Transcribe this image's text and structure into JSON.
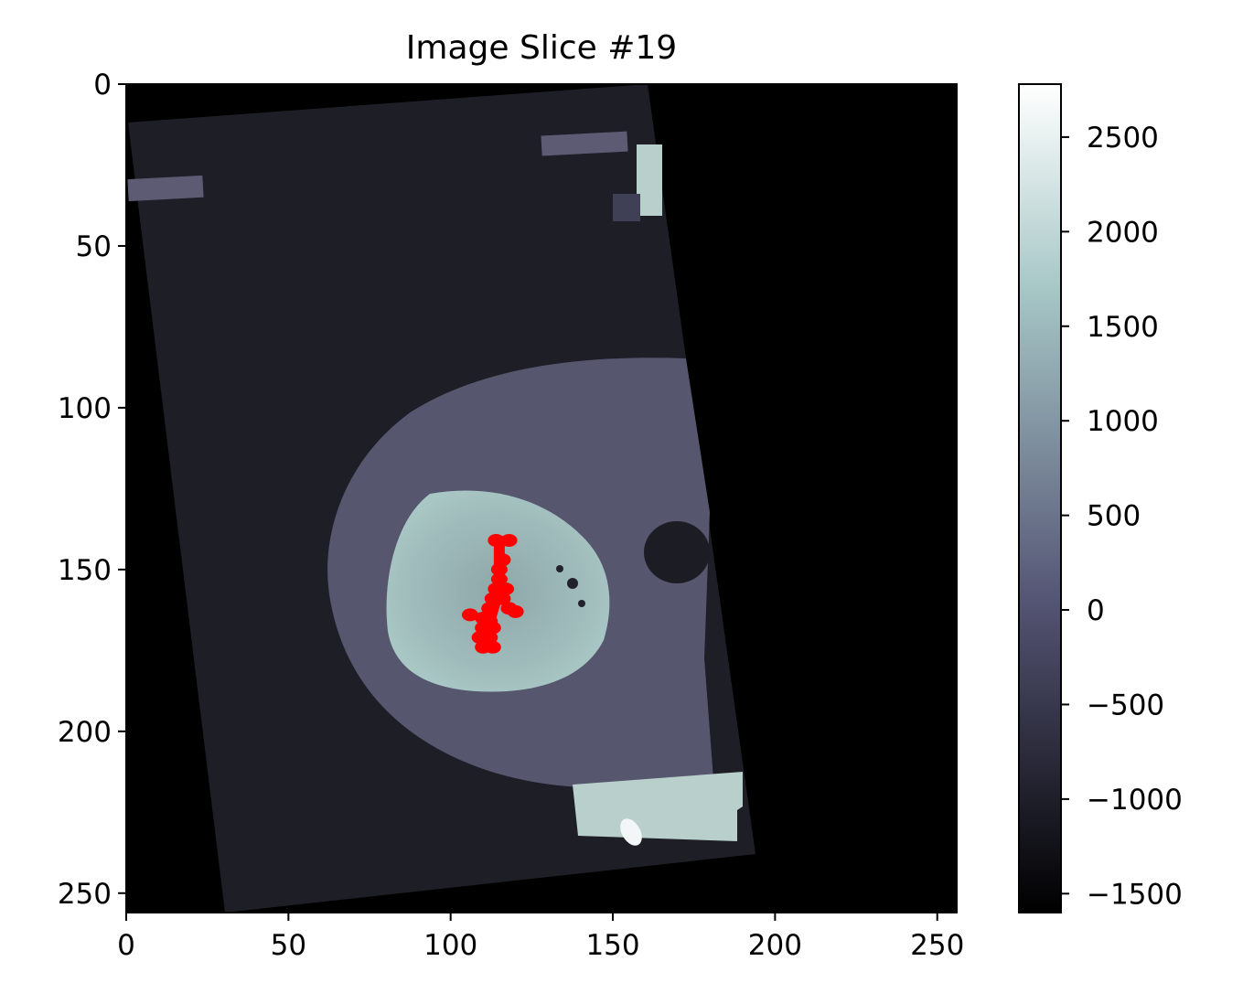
{
  "chart_data": {
    "type": "heatmap",
    "title": "Image Slice #19",
    "colormap": "bone",
    "image_size": [
      256,
      256
    ],
    "x_axis": {
      "range": [
        0,
        256
      ],
      "ticks": [
        0,
        50,
        100,
        150,
        200,
        250
      ]
    },
    "y_axis": {
      "range": [
        256,
        0
      ],
      "inverted": true,
      "ticks": [
        0,
        50,
        100,
        150,
        200,
        250
      ]
    },
    "colorbar": {
      "range": [
        -1600,
        2780
      ],
      "ticks": [
        -1500,
        -1000,
        -500,
        0,
        500,
        1000,
        1500,
        2000,
        2500
      ],
      "tick_labels": [
        "−1500",
        "−1000",
        "−500",
        "0",
        "500",
        "1000",
        "1500",
        "2000",
        "2500"
      ]
    },
    "overlay": {
      "color": "#ff0000",
      "description_points": [
        [
          114,
          141
        ],
        [
          118,
          141
        ],
        [
          116,
          147
        ],
        [
          115,
          150
        ],
        [
          115,
          153
        ],
        [
          114,
          156
        ],
        [
          117,
          156
        ],
        [
          113,
          159
        ],
        [
          116,
          159
        ],
        [
          112,
          162
        ],
        [
          118,
          162
        ],
        [
          120,
          163
        ],
        [
          106,
          164
        ],
        [
          110,
          165
        ],
        [
          112,
          166
        ],
        [
          110,
          168
        ],
        [
          113,
          168
        ],
        [
          109,
          171
        ],
        [
          112,
          171
        ],
        [
          110,
          174
        ],
        [
          113,
          174
        ]
      ]
    },
    "grid": false
  }
}
